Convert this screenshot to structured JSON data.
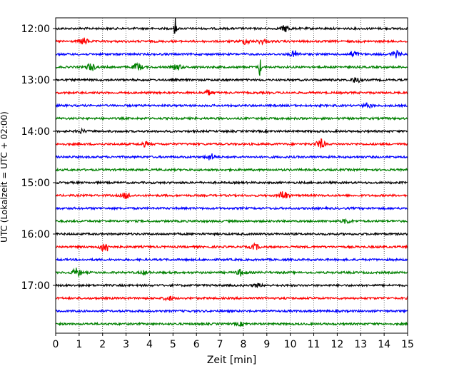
{
  "chart_data": {
    "type": "line",
    "title": "",
    "xlabel": "Zeit  [min]",
    "ylabel": "UTC (Lokalzeit = UTC + 02:00)",
    "xlim": [
      0,
      15
    ],
    "x_ticks": [
      "0",
      "1",
      "2",
      "3",
      "4",
      "5",
      "6",
      "7",
      "8",
      "9",
      "10",
      "11",
      "12",
      "13",
      "14",
      "15"
    ],
    "y_tick_labels": [
      "12:00",
      "13:00",
      "14:00",
      "15:00",
      "16:00",
      "17:00"
    ],
    "grid": "vertical dotted",
    "trace_interval_minutes": 15,
    "colors": [
      "#000000",
      "#ff0000",
      "#0000ff",
      "#008000"
    ],
    "series": [
      {
        "start": "12:00",
        "color": "#000000",
        "events": [
          {
            "t": 5.1,
            "amp": 1.0
          },
          {
            "t": 9.8,
            "amp": 0.3
          }
        ]
      },
      {
        "start": "12:15",
        "color": "#ff0000",
        "events": [
          {
            "t": 1.2,
            "amp": 0.3
          },
          {
            "t": 8.1,
            "amp": 0.25
          },
          {
            "t": 8.8,
            "amp": 0.2
          }
        ]
      },
      {
        "start": "12:30",
        "color": "#0000ff",
        "events": [
          {
            "t": 10.2,
            "amp": 0.3
          },
          {
            "t": 12.7,
            "amp": 0.3
          },
          {
            "t": 14.5,
            "amp": 0.3
          }
        ]
      },
      {
        "start": "12:45",
        "color": "#008000",
        "events": [
          {
            "t": 1.5,
            "amp": 0.35
          },
          {
            "t": 3.5,
            "amp": 0.35
          },
          {
            "t": 5.2,
            "amp": 0.25
          },
          {
            "t": 8.7,
            "amp": 1.0
          }
        ]
      },
      {
        "start": "13:00",
        "color": "#000000",
        "events": [
          {
            "t": 12.8,
            "amp": 0.25
          }
        ]
      },
      {
        "start": "13:15",
        "color": "#ff0000",
        "events": [
          {
            "t": 6.5,
            "amp": 0.25
          }
        ]
      },
      {
        "start": "13:30",
        "color": "#0000ff",
        "events": [
          {
            "t": 13.3,
            "amp": 0.2
          }
        ]
      },
      {
        "start": "13:45",
        "color": "#008000",
        "events": []
      },
      {
        "start": "14:00",
        "color": "#000000",
        "events": [
          {
            "t": 1.1,
            "amp": 0.15
          }
        ]
      },
      {
        "start": "14:15",
        "color": "#ff0000",
        "events": [
          {
            "t": 3.8,
            "amp": 0.2
          },
          {
            "t": 11.3,
            "amp": 0.45
          }
        ]
      },
      {
        "start": "14:30",
        "color": "#0000ff",
        "events": [
          {
            "t": 6.6,
            "amp": 0.3
          }
        ]
      },
      {
        "start": "14:45",
        "color": "#008000",
        "events": []
      },
      {
        "start": "15:00",
        "color": "#000000",
        "events": []
      },
      {
        "start": "15:15",
        "color": "#ff0000",
        "events": [
          {
            "t": 3.0,
            "amp": 0.3
          },
          {
            "t": 9.7,
            "amp": 0.45
          }
        ]
      },
      {
        "start": "15:30",
        "color": "#0000ff",
        "events": []
      },
      {
        "start": "15:45",
        "color": "#008000",
        "events": [
          {
            "t": 12.4,
            "amp": 0.2
          }
        ]
      },
      {
        "start": "16:00",
        "color": "#000000",
        "events": []
      },
      {
        "start": "16:15",
        "color": "#ff0000",
        "events": [
          {
            "t": 2.1,
            "amp": 0.55
          },
          {
            "t": 8.5,
            "amp": 0.25
          }
        ]
      },
      {
        "start": "16:30",
        "color": "#0000ff",
        "events": []
      },
      {
        "start": "16:45",
        "color": "#008000",
        "events": [
          {
            "t": 0.9,
            "amp": 0.4
          },
          {
            "t": 3.8,
            "amp": 0.15
          },
          {
            "t": 7.9,
            "amp": 0.3
          }
        ]
      },
      {
        "start": "17:00",
        "color": "#000000",
        "events": [
          {
            "t": 8.6,
            "amp": 0.15
          }
        ]
      },
      {
        "start": "17:15",
        "color": "#ff0000",
        "events": [
          {
            "t": 4.8,
            "amp": 0.2
          }
        ]
      },
      {
        "start": "17:30",
        "color": "#0000ff",
        "events": []
      },
      {
        "start": "17:45",
        "color": "#008000",
        "events": [
          {
            "t": 7.9,
            "amp": 0.15
          }
        ]
      }
    ]
  }
}
